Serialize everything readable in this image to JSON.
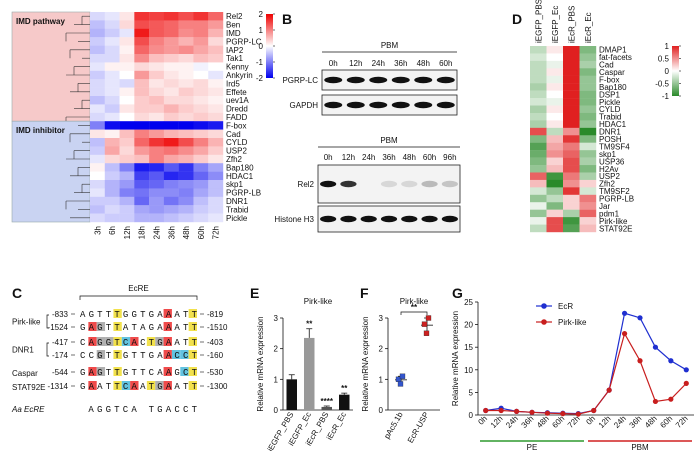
{
  "panels": [
    "A",
    "B",
    "C",
    "D",
    "E",
    "F",
    "G"
  ],
  "blots": [
    {
      "header": "PBM",
      "lanes": [
        "0h",
        "12h",
        "24h",
        "36h",
        "48h",
        "60h"
      ],
      "rows": [
        "PGRP-LC",
        "GAPDH"
      ]
    },
    {
      "header": "PBM",
      "lanes": [
        "0h",
        "12h",
        "24h",
        "36h",
        "48h",
        "60h",
        "96h"
      ],
      "rows": [
        "Rel2",
        "Histone H3"
      ]
    }
  ],
  "sequence": {
    "title": "EcRE",
    "groups": [
      {
        "gene": "Pirk-like",
        "sites": [
          {
            "start": -833,
            "seq": "AGTTTGGTGAAATT",
            "end": -819
          },
          {
            "start": -1524,
            "seq": "GAGTTATAGAAATT",
            "end": -1510
          }
        ]
      },
      {
        "gene": "DNR1",
        "sites": [
          {
            "start": -417,
            "seq": "CAGGTCACTGAATT",
            "end": -403
          },
          {
            "start": -174,
            "seq": "CCGTTGTTGAACCT",
            "end": -160
          }
        ]
      },
      {
        "gene": "Caspar",
        "sites": [
          {
            "start": -544,
            "seq": "GAGTTGTTCAAGCT",
            "end": -530
          }
        ]
      },
      {
        "gene": "STAT92E",
        "sites": [
          {
            "start": -1314,
            "seq": "GAATTCAATGAATT",
            "end": -1300
          }
        ]
      }
    ],
    "consensus": {
      "name": "Aa EcRE",
      "seq": "AGGTCA TGACCT"
    }
  },
  "chart_data": [
    {
      "type": "heatmap",
      "groups": [
        "IMD pathway",
        "IMD inhibitor"
      ],
      "group_colors": [
        "#f6c9c9",
        "#c9d3f2"
      ],
      "columns": [
        "3h",
        "6h",
        "12h",
        "18h",
        "24h",
        "36h",
        "48h",
        "60h",
        "72h"
      ],
      "rows": [
        "Rel2",
        "Ben",
        "IMD",
        "PGRP-LC",
        "IAP2",
        "Tak1",
        "Kenny",
        "Ankyrin",
        "Ird5",
        "Effete",
        "uev1A",
        "Dredd",
        "FADD",
        "F-box",
        "Cad",
        "CYLD",
        "USP2",
        "Zfh2",
        "Bap180",
        "HDAC1",
        "skp1",
        "PGRP-LB",
        "DNR1",
        "Trabid",
        "Pickle"
      ],
      "values": [
        [
          -0.3,
          -0.2,
          0.2,
          1.6,
          1.5,
          1.6,
          1.4,
          1.6,
          1.2
        ],
        [
          -0.5,
          -0.3,
          0.3,
          1.4,
          1.3,
          1.2,
          1.0,
          1.0,
          0.8
        ],
        [
          -0.6,
          -0.4,
          -0.2,
          1.8,
          1.3,
          1.2,
          0.9,
          1.0,
          0.6
        ],
        [
          -0.4,
          -0.2,
          0.2,
          1.4,
          1.0,
          0.8,
          0.6,
          0.8,
          0.3
        ],
        [
          -0.5,
          -0.3,
          0.1,
          1.2,
          0.9,
          0.8,
          0.9,
          0.7,
          0.5
        ],
        [
          -0.3,
          -0.3,
          0.2,
          0.9,
          0.5,
          0.4,
          0.3,
          0.5,
          0.4
        ],
        [
          -0.2,
          0.1,
          0.1,
          0.3,
          0.2,
          0.1,
          0.1,
          -0.1,
          0.0
        ],
        [
          -0.4,
          -0.2,
          0.0,
          0.8,
          0.4,
          0.2,
          0.1,
          0.0,
          -0.2
        ],
        [
          -0.3,
          -0.2,
          -0.3,
          0.5,
          0.2,
          0.3,
          0.2,
          0.3,
          0.1
        ],
        [
          -0.3,
          -0.2,
          0.1,
          0.5,
          0.3,
          0.2,
          0.4,
          0.3,
          0.2
        ],
        [
          -0.5,
          -0.3,
          0.0,
          0.4,
          0.5,
          0.3,
          0.3,
          0.2,
          0.1
        ],
        [
          -0.2,
          -0.4,
          0.2,
          0.4,
          0.4,
          0.6,
          0.4,
          0.3,
          0.2
        ],
        [
          -0.3,
          -0.2,
          0.0,
          0.3,
          0.2,
          0.4,
          0.3,
          0.4,
          0.3
        ],
        [
          -1.0,
          -1.9,
          -2.0,
          -2.0,
          -2.0,
          -2.0,
          -2.0,
          -1.9,
          -1.8
        ],
        [
          0.2,
          0.1,
          0.5,
          1.0,
          0.8,
          0.6,
          0.5,
          0.4,
          0.3
        ],
        [
          -0.5,
          0.6,
          0.4,
          1.2,
          1.6,
          1.8,
          1.4,
          1.0,
          0.6
        ],
        [
          -0.4,
          0.7,
          0.3,
          0.8,
          1.0,
          1.1,
          0.9,
          0.7,
          0.4
        ],
        [
          -0.2,
          0.3,
          0.4,
          0.5,
          1.0,
          0.7,
          0.6,
          0.4,
          0.2
        ],
        [
          0.1,
          -0.5,
          -1.0,
          -1.8,
          -1.7,
          -1.3,
          -1.6,
          -1.0,
          -0.7
        ],
        [
          0.0,
          -0.4,
          -0.6,
          -1.5,
          -1.3,
          -1.7,
          -1.6,
          -1.2,
          -0.9
        ],
        [
          -0.3,
          -0.6,
          -0.8,
          -1.3,
          -1.2,
          -1.0,
          -0.9,
          -0.8,
          -0.5
        ],
        [
          -0.2,
          -0.6,
          -1.0,
          -1.1,
          -0.9,
          -0.9,
          -1.0,
          -0.7,
          -0.5
        ],
        [
          -0.4,
          -0.4,
          -0.6,
          -1.2,
          -0.8,
          -1.1,
          -0.9,
          -0.5,
          -0.3
        ],
        [
          -0.5,
          -0.3,
          -0.4,
          -0.7,
          -0.8,
          -0.7,
          -0.6,
          -0.4,
          -0.3
        ],
        [
          -0.3,
          -0.4,
          -0.4,
          -0.6,
          -0.6,
          -0.5,
          -0.4,
          -0.3,
          -0.2
        ]
      ],
      "zlim": [
        -2,
        2
      ],
      "zticks": [
        2,
        1,
        0,
        -1,
        -2
      ],
      "colors": [
        "#0000ee",
        "#ffffff",
        "#ee0000"
      ]
    },
    {
      "type": "bar",
      "title": "Pirk-like",
      "ylabel": "Relative mRNA expression",
      "categories": [
        "iEGFP_PBS",
        "iEGFP_Ec",
        "iEcR_PBS",
        "iEcR_Ec"
      ],
      "values": [
        1,
        2.35,
        0.1,
        0.5
      ],
      "errors": [
        0.15,
        0.3,
        0.03,
        0.05
      ],
      "colors": [
        "#111111",
        "#999999",
        "#555555",
        "#111111"
      ],
      "significance": [
        null,
        "**",
        "****",
        "**"
      ],
      "ylim": [
        0,
        3
      ],
      "yticks": [
        0,
        1,
        2,
        3
      ]
    },
    {
      "type": "strip",
      "title": "Pirk-like",
      "ylabel": "Relative mRNA expression",
      "categories": [
        "pAc5.1b",
        "EcR-USP"
      ],
      "values": [
        [
          1.0,
          0.85,
          1.1
        ],
        [
          2.8,
          2.5,
          3.0
        ]
      ],
      "colors": [
        "#3355cc",
        "#cc2222"
      ],
      "significance": "**",
      "ylim": [
        0,
        3
      ],
      "yticks": [
        0,
        1,
        2,
        3
      ]
    },
    {
      "type": "line",
      "ylabel": "Relative mRNA expression",
      "categories": [
        "0h",
        "12h",
        "24h",
        "36h",
        "48h",
        "60h",
        "72h",
        "0h",
        "12h",
        "24h",
        "36h",
        "48h",
        "60h",
        "72h"
      ],
      "groups": [
        "PE",
        "PBM"
      ],
      "group_colors": [
        "#2e9a2e",
        "#d02020"
      ],
      "series": [
        {
          "name": "EcR",
          "color": "#1f2fd0",
          "values": [
            1,
            1.5,
            0.8,
            0.6,
            0.5,
            0.4,
            0.3,
            1,
            5.5,
            22.5,
            21.5,
            15,
            12,
            10
          ]
        },
        {
          "name": "Pirk-like",
          "color": "#c81e1e",
          "values": [
            1,
            1,
            0.8,
            0.6,
            0.4,
            0.3,
            0.2,
            1,
            5.5,
            18,
            12,
            3,
            3.5,
            7
          ]
        }
      ],
      "legend": "upper center",
      "ylim": [
        0,
        25
      ],
      "yticks": [
        0,
        5,
        10,
        15,
        20,
        25
      ]
    },
    {
      "type": "heatmap",
      "columns": [
        "iEGFP_PBS",
        "iEGFP_Ec",
        "iEcR_PBS",
        "iEcR_Ec"
      ],
      "rows": [
        "DMAP1",
        "fat-facets",
        "Cad",
        "Caspar",
        "F-box",
        "Bap180",
        "DSP1",
        "Pickle",
        "CYLD",
        "Trabid",
        "HDAC1",
        "DNR1",
        "POSH",
        "TM9SF4",
        "skp1",
        "USP36",
        "H2Av",
        "USP2",
        "Zfh2",
        "TM9SF2",
        "PGRP-LB",
        "Jar",
        "pdm1",
        "Pirk-like",
        "STAT92E"
      ],
      "values": [
        [
          -0.3,
          0.1,
          1.0,
          -0.6
        ],
        [
          -0.2,
          0.0,
          1.0,
          -0.5
        ],
        [
          -0.3,
          -0.1,
          1.0,
          -0.4
        ],
        [
          -0.3,
          0.1,
          1.0,
          -0.6
        ],
        [
          -0.3,
          -0.1,
          1.0,
          -0.5
        ],
        [
          -0.4,
          0.1,
          1.0,
          -0.5
        ],
        [
          -0.3,
          0.0,
          1.0,
          -0.6
        ],
        [
          -0.2,
          -0.1,
          1.0,
          -0.6
        ],
        [
          -0.4,
          0.1,
          1.0,
          -0.5
        ],
        [
          -0.3,
          0.0,
          1.0,
          -0.6
        ],
        [
          -0.4,
          0.1,
          1.0,
          -0.5
        ],
        [
          0.8,
          -0.3,
          0.5,
          -1.0
        ],
        [
          -0.6,
          0.3,
          0.9,
          -0.6
        ],
        [
          -0.8,
          0.4,
          0.6,
          -0.2
        ],
        [
          -0.7,
          0.5,
          0.7,
          -0.5
        ],
        [
          -0.6,
          0.2,
          0.8,
          -0.4
        ],
        [
          -0.5,
          0.3,
          0.8,
          -0.6
        ],
        [
          0.7,
          -0.9,
          0.6,
          -0.4
        ],
        [
          0.3,
          -1.0,
          0.5,
          0.2
        ],
        [
          -0.2,
          -0.5,
          0.9,
          -0.2
        ],
        [
          -0.5,
          -0.3,
          0.2,
          0.6
        ],
        [
          -0.1,
          -0.6,
          0.2,
          0.5
        ],
        [
          -0.5,
          0.2,
          -0.4,
          0.7
        ],
        [
          -0.1,
          0.8,
          -0.9,
          0.2
        ],
        [
          -0.3,
          0.8,
          -0.8,
          0.3
        ]
      ],
      "highlight_rows": [
        "Pirk-like",
        "STAT92E"
      ],
      "highlight_color": "#e02020",
      "zlim": [
        -1,
        1
      ],
      "zticks": [
        1,
        0.5,
        0,
        -0.5,
        -1
      ],
      "colors": [
        "#2a8a2a",
        "#ffffff",
        "#e02020"
      ]
    }
  ]
}
